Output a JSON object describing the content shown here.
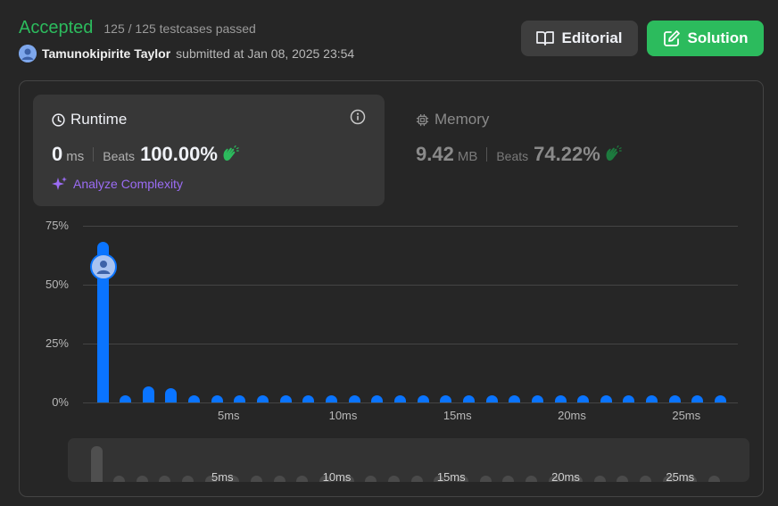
{
  "header": {
    "status": "Accepted",
    "testcases": "125 / 125 testcases passed",
    "user": "Tamunokipirite Taylor",
    "submitted": "submitted at Jan 08, 2025 23:54"
  },
  "buttons": {
    "editorial": "Editorial",
    "solution": "Solution"
  },
  "runtime": {
    "title": "Runtime",
    "value": "0",
    "unit": "ms",
    "beats_label": "Beats",
    "beats": "100.00%",
    "analyze": "Analyze Complexity"
  },
  "memory": {
    "title": "Memory",
    "value": "9.42",
    "unit": "MB",
    "beats_label": "Beats",
    "beats": "74.22%"
  },
  "colors": {
    "accepted": "#2cbb5d",
    "bar": "#0a74ff",
    "analyze": "#9b6cf4"
  },
  "chart_data": {
    "type": "bar",
    "ylabel": "",
    "xlabel": "",
    "yticks": [
      "75%",
      "50%",
      "25%",
      "0%"
    ],
    "ylim": [
      0,
      75
    ],
    "xtick_labels": [
      "5ms",
      "10ms",
      "15ms",
      "20ms",
      "25ms"
    ],
    "x": [
      0,
      1,
      2,
      3,
      4,
      5,
      6,
      7,
      8,
      9,
      10,
      11,
      12,
      13,
      14,
      15,
      16,
      17,
      18,
      19,
      20,
      21,
      22,
      23,
      24,
      25,
      26,
      27
    ],
    "values": [
      68,
      3,
      7,
      6,
      1.5,
      1.5,
      1.5,
      1.5,
      1.5,
      1.5,
      1.5,
      1.5,
      1.5,
      1.5,
      1.5,
      1.5,
      1.5,
      1.5,
      1.5,
      1.5,
      1.5,
      1.5,
      1.5,
      1.5,
      1.5,
      1.5,
      1.5,
      1.5
    ],
    "user_value_x": 0,
    "user_beats": "100.00%"
  },
  "mini_chart": {
    "xtick_labels": [
      "5ms",
      "10ms",
      "15ms",
      "20ms",
      "25ms"
    ]
  }
}
